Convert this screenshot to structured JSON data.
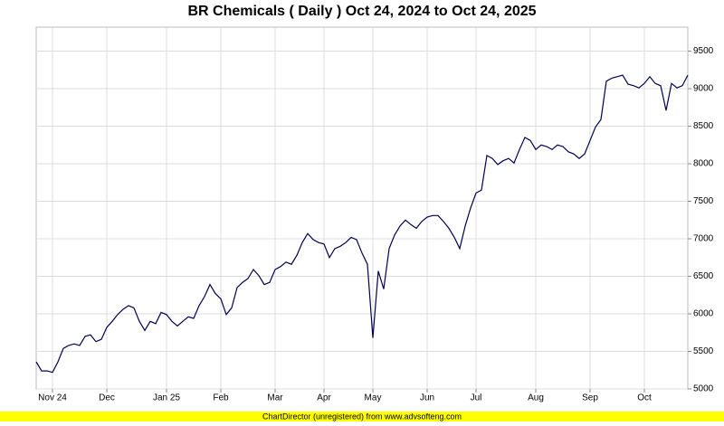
{
  "chart_data": {
    "type": "line",
    "title": "BR Chemicals ( Daily ) Oct 24, 2024 to Oct 24, 2025",
    "footer": "ChartDirector (unregistered) from www.advsofteng.com",
    "categories": [
      null,
      null,
      null,
      "Nov 24",
      null,
      null,
      null,
      null,
      null,
      null,
      null,
      null,
      null,
      "Dec",
      null,
      null,
      null,
      null,
      null,
      null,
      null,
      null,
      null,
      null,
      "Jan 25",
      null,
      null,
      null,
      null,
      null,
      null,
      null,
      null,
      null,
      "Feb",
      null,
      null,
      null,
      null,
      null,
      null,
      null,
      null,
      null,
      "Mar",
      null,
      null,
      null,
      null,
      null,
      null,
      null,
      null,
      "Apr",
      null,
      null,
      null,
      null,
      null,
      null,
      null,
      null,
      "May",
      null,
      null,
      null,
      null,
      null,
      null,
      null,
      null,
      null,
      "Jun",
      null,
      null,
      null,
      null,
      null,
      null,
      null,
      null,
      "Jul",
      null,
      null,
      null,
      null,
      null,
      null,
      null,
      null,
      null,
      null,
      "Aug",
      null,
      null,
      null,
      null,
      null,
      null,
      null,
      null,
      null,
      "Sep",
      null,
      null,
      null,
      null,
      null,
      null,
      null,
      null,
      null,
      "Oct",
      null,
      null,
      null,
      null,
      null,
      null,
      null,
      null
    ],
    "series": [
      {
        "color": "#000050",
        "values": [
          5360,
          5240,
          5240,
          5220,
          5360,
          5540,
          5580,
          5600,
          5580,
          5700,
          5720,
          5630,
          5660,
          5820,
          5900,
          5990,
          6060,
          6110,
          6080,
          5900,
          5780,
          5900,
          5870,
          6020,
          5990,
          5900,
          5840,
          5900,
          5960,
          5940,
          6110,
          6230,
          6390,
          6270,
          6200,
          5990,
          6080,
          6350,
          6420,
          6470,
          6590,
          6510,
          6390,
          6420,
          6590,
          6630,
          6690,
          6660,
          6780,
          6950,
          7070,
          6990,
          6950,
          6930,
          6750,
          6870,
          6900,
          6950,
          7020,
          6990,
          6810,
          6660,
          5680,
          6570,
          6330,
          6870,
          7050,
          7170,
          7250,
          7190,
          7140,
          7230,
          7290,
          7310,
          7310,
          7230,
          7140,
          7020,
          6870,
          7170,
          7410,
          7610,
          7650,
          8110,
          8070,
          7990,
          8040,
          8070,
          8010,
          8190,
          8350,
          8310,
          8190,
          8250,
          8230,
          8190,
          8250,
          8230,
          8160,
          8130,
          8070,
          8130,
          8310,
          8490,
          8590,
          9100,
          9140,
          9160,
          9180,
          9060,
          9040,
          9010,
          9070,
          9160,
          9070,
          9040,
          8710,
          9070,
          9010,
          9040,
          9180
        ]
      }
    ],
    "ylim": [
      5000,
      9820
    ],
    "yticks": [
      5000,
      5500,
      6000,
      6500,
      7000,
      7500,
      8000,
      8500,
      9000,
      9500
    ],
    "grid": true
  }
}
